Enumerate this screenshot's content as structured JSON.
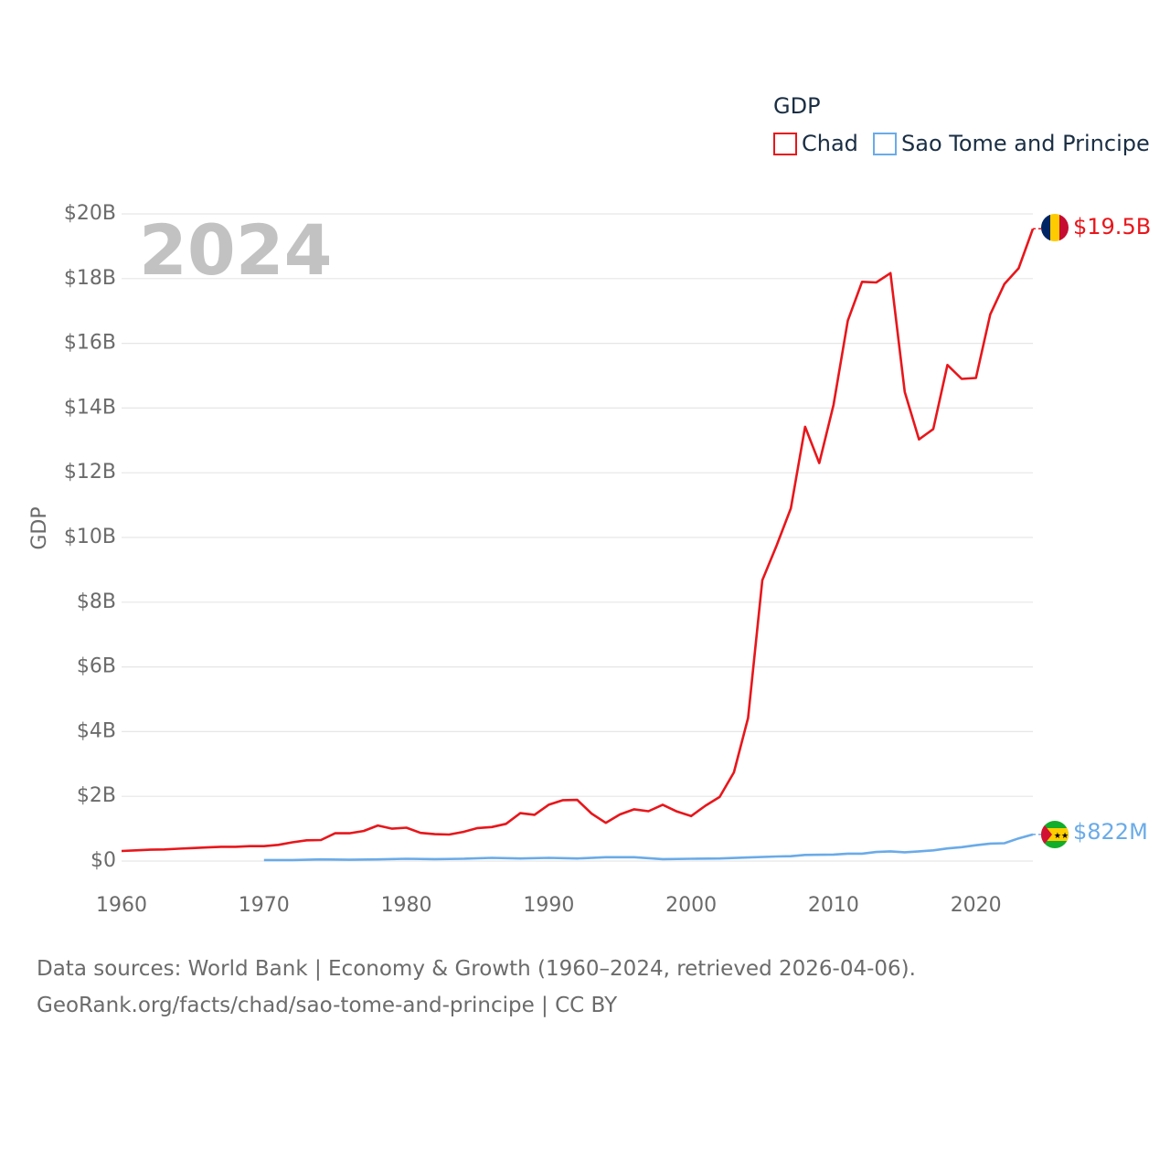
{
  "chart_data": {
    "type": "line",
    "year_label": "2024",
    "ylabel": "GDP",
    "legend_title": "GDP",
    "xlim": [
      1960,
      2024
    ],
    "ylim": [
      0,
      20
    ],
    "x_ticks": [
      1960,
      1970,
      1980,
      1990,
      2000,
      2010,
      2020
    ],
    "y_ticks": [
      {
        "value": 0,
        "label": "$0"
      },
      {
        "value": 2,
        "label": "$2B"
      },
      {
        "value": 4,
        "label": "$4B"
      },
      {
        "value": 6,
        "label": "$6B"
      },
      {
        "value": 8,
        "label": "$8B"
      },
      {
        "value": 10,
        "label": "$10B"
      },
      {
        "value": 12,
        "label": "$12B"
      },
      {
        "value": 14,
        "label": "$14B"
      },
      {
        "value": 16,
        "label": "$16B"
      },
      {
        "value": 18,
        "label": "$18B"
      },
      {
        "value": 20,
        "label": "$20B"
      }
    ],
    "value_unit": "billions USD",
    "series": [
      {
        "name": "Chad",
        "color": "#e8161b",
        "end_label": "$19.5B",
        "flag": "chad-flag-icon",
        "x": [
          1960,
          1961,
          1962,
          1963,
          1964,
          1965,
          1966,
          1967,
          1968,
          1969,
          1970,
          1971,
          1972,
          1973,
          1974,
          1975,
          1976,
          1977,
          1978,
          1979,
          1980,
          1981,
          1982,
          1983,
          1984,
          1985,
          1986,
          1987,
          1988,
          1989,
          1990,
          1991,
          1992,
          1993,
          1994,
          1995,
          1996,
          1997,
          1998,
          1999,
          2000,
          2001,
          2002,
          2003,
          2004,
          2005,
          2006,
          2007,
          2008,
          2009,
          2010,
          2011,
          2012,
          2013,
          2014,
          2015,
          2016,
          2017,
          2018,
          2019,
          2020,
          2021,
          2022,
          2023,
          2024
        ],
        "values": [
          0.31,
          0.33,
          0.35,
          0.36,
          0.38,
          0.4,
          0.42,
          0.44,
          0.44,
          0.46,
          0.46,
          0.5,
          0.58,
          0.64,
          0.65,
          0.86,
          0.86,
          0.93,
          1.1,
          1.0,
          1.03,
          0.87,
          0.83,
          0.82,
          0.9,
          1.02,
          1.05,
          1.15,
          1.48,
          1.43,
          1.74,
          1.88,
          1.89,
          1.47,
          1.18,
          1.44,
          1.6,
          1.54,
          1.74,
          1.53,
          1.39,
          1.71,
          1.98,
          2.74,
          4.42,
          8.68,
          9.75,
          10.9,
          13.42,
          12.3,
          14.1,
          16.7,
          17.9,
          17.88,
          18.17,
          14.5,
          13.03,
          13.35,
          15.33,
          14.9,
          14.93,
          16.89,
          17.83,
          18.32,
          19.54
        ]
      },
      {
        "name": "Sao Tome and Principe",
        "color": "#6aabe8",
        "end_label": "$822M",
        "flag": "sao-tome-flag-icon",
        "x": [
          1970,
          1972,
          1974,
          1976,
          1978,
          1980,
          1982,
          1984,
          1986,
          1988,
          1990,
          1992,
          1994,
          1996,
          1998,
          2000,
          2002,
          2004,
          2006,
          2007,
          2008,
          2010,
          2011,
          2012,
          2013,
          2014,
          2015,
          2016,
          2017,
          2018,
          2019,
          2020,
          2021,
          2022,
          2023,
          2024
        ],
        "values": [
          0.03,
          0.03,
          0.05,
          0.04,
          0.05,
          0.07,
          0.06,
          0.07,
          0.1,
          0.08,
          0.1,
          0.08,
          0.12,
          0.12,
          0.06,
          0.07,
          0.08,
          0.11,
          0.14,
          0.15,
          0.19,
          0.2,
          0.23,
          0.23,
          0.28,
          0.3,
          0.27,
          0.3,
          0.33,
          0.39,
          0.43,
          0.49,
          0.54,
          0.55,
          0.7,
          0.822
        ]
      }
    ]
  },
  "footer": {
    "sources_line": "Data sources: World Bank | Economy & Growth (1960–2024, retrieved 2026-04-06).",
    "link_line": "GeoRank.org/facts/chad/sao-tome-and-principe | CC BY"
  }
}
